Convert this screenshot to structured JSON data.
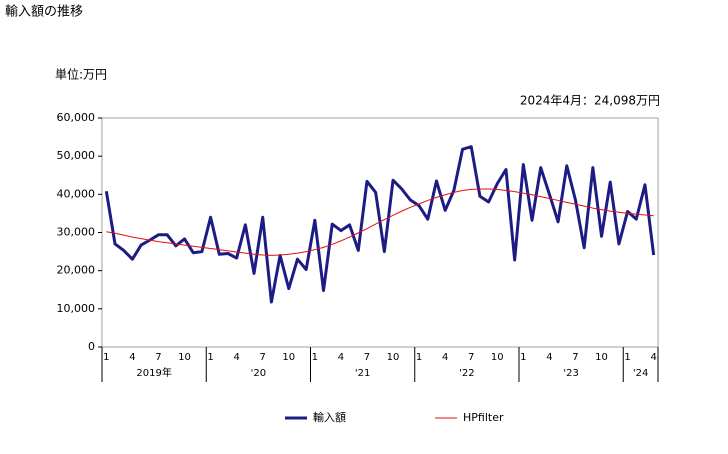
{
  "chart_data": {
    "type": "line",
    "title": "輸入額の推移",
    "unit_label": "単位:万円",
    "annotation": "2024年4月：24,098万円",
    "categories": [
      "1",
      null,
      null,
      "4",
      null,
      null,
      "7",
      null,
      null,
      "10",
      null,
      null,
      "1",
      null,
      null,
      "4",
      null,
      null,
      "7",
      null,
      null,
      "10",
      null,
      null,
      "1",
      null,
      null,
      "4",
      null,
      null,
      "7",
      null,
      null,
      "10",
      null,
      null,
      "1",
      null,
      null,
      "4",
      null,
      null,
      "7",
      null,
      null,
      "10",
      null,
      null,
      "1",
      null,
      null,
      "4",
      null,
      null,
      "7",
      null,
      null,
      "10",
      null,
      null,
      "1",
      null,
      null,
      "4"
    ],
    "year_labels": [
      "2019年",
      "'20",
      "'21",
      "'22",
      "'23",
      "'24"
    ],
    "series": [
      {
        "name": "輸入額",
        "color": "#1c1c84",
        "width": 3,
        "values": [
          40800,
          27000,
          25300,
          23000,
          26700,
          28000,
          29400,
          29400,
          26500,
          28300,
          24700,
          25000,
          34000,
          24300,
          24500,
          23300,
          32000,
          19300,
          34000,
          11800,
          24000,
          15300,
          23000,
          20300,
          33200,
          14800,
          32200,
          30500,
          32000,
          25300,
          43400,
          40500,
          25000,
          43700,
          41400,
          38500,
          37000,
          33500,
          43500,
          35800,
          41000,
          51800,
          52500,
          39500,
          38000,
          42800,
          46500,
          22800,
          47800,
          33200,
          47000,
          40000,
          32800,
          47500,
          38500,
          26000,
          47000,
          29000,
          43200,
          27000,
          35500,
          33500,
          42500,
          24098
        ]
      },
      {
        "name": "HPfilter",
        "color": "#e01010",
        "width": 1,
        "values": [
          30200,
          29800,
          29300,
          28800,
          28400,
          28000,
          27600,
          27300,
          27000,
          26700,
          26400,
          26100,
          25800,
          25500,
          25200,
          24900,
          24600,
          24300,
          24100,
          24000,
          24100,
          24300,
          24600,
          25000,
          25500,
          26100,
          26900,
          27800,
          28800,
          29900,
          31000,
          32200,
          33400,
          34500,
          35600,
          36600,
          37500,
          38400,
          39200,
          39900,
          40500,
          41000,
          41300,
          41400,
          41400,
          41300,
          41000,
          40700,
          40300,
          39900,
          39400,
          38900,
          38400,
          37900,
          37400,
          36900,
          36400,
          36000,
          35600,
          35300,
          35000,
          34800,
          34600,
          34400
        ]
      }
    ],
    "ylim": [
      0,
      60000
    ],
    "yticks": [
      0,
      {
        "value": 10000,
        "label": "10,000"
      },
      {
        "value": 20000,
        "label": "20,000"
      },
      {
        "value": 30000,
        "label": "30,000"
      },
      {
        "value": 40000,
        "label": "40,000"
      },
      {
        "value": 50000,
        "label": "50,000"
      },
      {
        "value": 60000,
        "label": "60,000"
      }
    ],
    "grid": false
  }
}
